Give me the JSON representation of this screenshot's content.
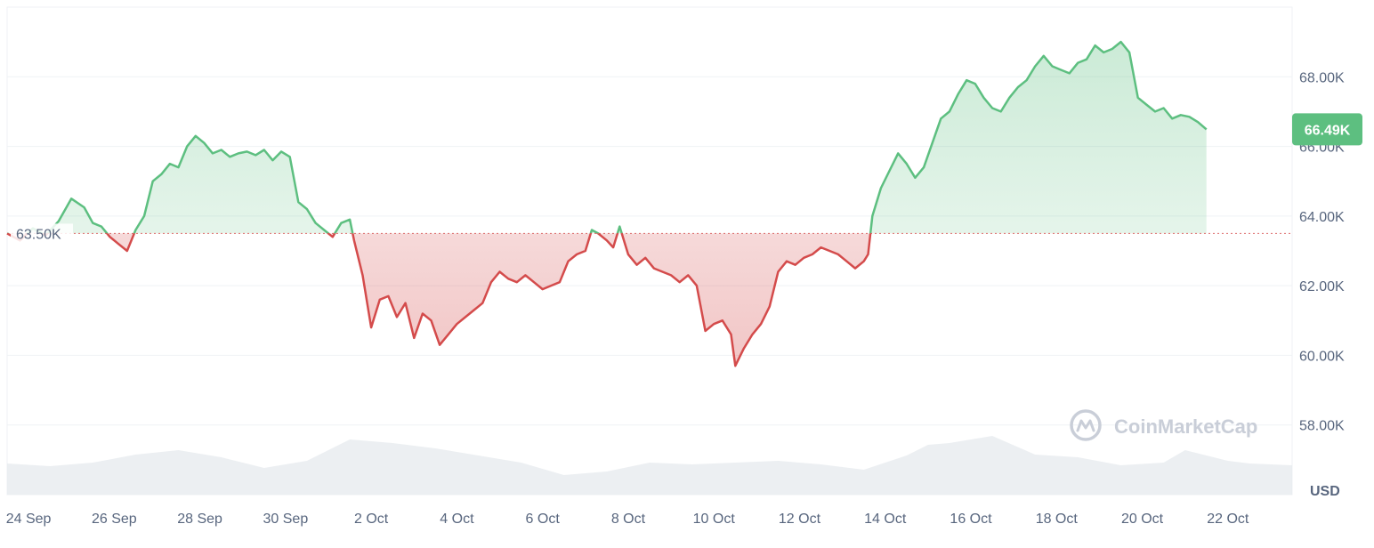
{
  "chart_data": {
    "type": "line",
    "currency_label": "USD",
    "baseline": {
      "value": 63500,
      "label": "63.50K"
    },
    "last_price": {
      "value": 66490,
      "label": "66.49K"
    },
    "y_ticks": [
      {
        "value": 58000,
        "label": "58.00K"
      },
      {
        "value": 60000,
        "label": "60.00K"
      },
      {
        "value": 62000,
        "label": "62.00K"
      },
      {
        "value": 64000,
        "label": "64.00K"
      },
      {
        "value": 66000,
        "label": "66.00K"
      },
      {
        "value": 68000,
        "label": "68.00K"
      }
    ],
    "ylim": [
      56000,
      70000
    ],
    "x_range": [
      0,
      30
    ],
    "x_ticks": [
      {
        "day": 0.5,
        "label": "24 Sep"
      },
      {
        "day": 2.5,
        "label": "26 Sep"
      },
      {
        "day": 4.5,
        "label": "28 Sep"
      },
      {
        "day": 6.5,
        "label": "30 Sep"
      },
      {
        "day": 8.5,
        "label": "2 Oct"
      },
      {
        "day": 10.5,
        "label": "4 Oct"
      },
      {
        "day": 12.5,
        "label": "6 Oct"
      },
      {
        "day": 14.5,
        "label": "8 Oct"
      },
      {
        "day": 16.5,
        "label": "10 Oct"
      },
      {
        "day": 18.5,
        "label": "12 Oct"
      },
      {
        "day": 20.5,
        "label": "14 Oct"
      },
      {
        "day": 22.5,
        "label": "16 Oct"
      },
      {
        "day": 24.5,
        "label": "18 Oct"
      },
      {
        "day": 26.5,
        "label": "20 Oct"
      },
      {
        "day": 28.5,
        "label": "22 Oct"
      }
    ],
    "price_series": {
      "name": "Price",
      "points": [
        [
          0.0,
          63500
        ],
        [
          0.3,
          63300
        ],
        [
          0.6,
          63650
        ],
        [
          0.9,
          63450
        ],
        [
          1.2,
          63850
        ],
        [
          1.5,
          64500
        ],
        [
          1.8,
          64250
        ],
        [
          2.0,
          63800
        ],
        [
          2.2,
          63700
        ],
        [
          2.4,
          63400
        ],
        [
          2.6,
          63200
        ],
        [
          2.8,
          63000
        ],
        [
          3.0,
          63600
        ],
        [
          3.2,
          64000
        ],
        [
          3.4,
          65000
        ],
        [
          3.6,
          65200
        ],
        [
          3.8,
          65500
        ],
        [
          4.0,
          65400
        ],
        [
          4.2,
          66000
        ],
        [
          4.4,
          66300
        ],
        [
          4.6,
          66100
        ],
        [
          4.8,
          65800
        ],
        [
          5.0,
          65900
        ],
        [
          5.2,
          65700
        ],
        [
          5.4,
          65800
        ],
        [
          5.6,
          65850
        ],
        [
          5.8,
          65750
        ],
        [
          6.0,
          65900
        ],
        [
          6.2,
          65600
        ],
        [
          6.4,
          65850
        ],
        [
          6.6,
          65700
        ],
        [
          6.8,
          64400
        ],
        [
          7.0,
          64200
        ],
        [
          7.2,
          63800
        ],
        [
          7.4,
          63600
        ],
        [
          7.6,
          63400
        ],
        [
          7.8,
          63800
        ],
        [
          8.0,
          63900
        ],
        [
          8.1,
          63300
        ],
        [
          8.3,
          62300
        ],
        [
          8.5,
          60800
        ],
        [
          8.7,
          61600
        ],
        [
          8.9,
          61700
        ],
        [
          9.1,
          61100
        ],
        [
          9.3,
          61500
        ],
        [
          9.5,
          60500
        ],
        [
          9.7,
          61200
        ],
        [
          9.9,
          61000
        ],
        [
          10.1,
          60300
        ],
        [
          10.3,
          60600
        ],
        [
          10.5,
          60900
        ],
        [
          10.7,
          61100
        ],
        [
          10.9,
          61300
        ],
        [
          11.1,
          61500
        ],
        [
          11.3,
          62100
        ],
        [
          11.5,
          62400
        ],
        [
          11.7,
          62200
        ],
        [
          11.9,
          62100
        ],
        [
          12.1,
          62300
        ],
        [
          12.3,
          62100
        ],
        [
          12.5,
          61900
        ],
        [
          12.7,
          62000
        ],
        [
          12.9,
          62100
        ],
        [
          13.1,
          62700
        ],
        [
          13.3,
          62900
        ],
        [
          13.5,
          63000
        ],
        [
          13.65,
          63600
        ],
        [
          13.8,
          63500
        ],
        [
          14.0,
          63300
        ],
        [
          14.15,
          63100
        ],
        [
          14.3,
          63700
        ],
        [
          14.5,
          62900
        ],
        [
          14.7,
          62600
        ],
        [
          14.9,
          62800
        ],
        [
          15.1,
          62500
        ],
        [
          15.3,
          62400
        ],
        [
          15.5,
          62300
        ],
        [
          15.7,
          62100
        ],
        [
          15.9,
          62300
        ],
        [
          16.1,
          62000
        ],
        [
          16.3,
          60700
        ],
        [
          16.5,
          60900
        ],
        [
          16.7,
          61000
        ],
        [
          16.9,
          60600
        ],
        [
          17.0,
          59700
        ],
        [
          17.2,
          60200
        ],
        [
          17.4,
          60600
        ],
        [
          17.6,
          60900
        ],
        [
          17.8,
          61400
        ],
        [
          18.0,
          62400
        ],
        [
          18.2,
          62700
        ],
        [
          18.4,
          62600
        ],
        [
          18.6,
          62800
        ],
        [
          18.8,
          62900
        ],
        [
          19.0,
          63100
        ],
        [
          19.2,
          63000
        ],
        [
          19.4,
          62900
        ],
        [
          19.6,
          62700
        ],
        [
          19.8,
          62500
        ],
        [
          20.0,
          62700
        ],
        [
          20.1,
          62900
        ],
        [
          20.2,
          64000
        ],
        [
          20.4,
          64800
        ],
        [
          20.6,
          65300
        ],
        [
          20.8,
          65800
        ],
        [
          21.0,
          65500
        ],
        [
          21.2,
          65100
        ],
        [
          21.4,
          65400
        ],
        [
          21.6,
          66100
        ],
        [
          21.8,
          66800
        ],
        [
          22.0,
          67000
        ],
        [
          22.2,
          67500
        ],
        [
          22.4,
          67900
        ],
        [
          22.6,
          67800
        ],
        [
          22.8,
          67400
        ],
        [
          23.0,
          67100
        ],
        [
          23.2,
          67000
        ],
        [
          23.4,
          67400
        ],
        [
          23.6,
          67700
        ],
        [
          23.8,
          67900
        ],
        [
          24.0,
          68300
        ],
        [
          24.2,
          68600
        ],
        [
          24.4,
          68300
        ],
        [
          24.6,
          68200
        ],
        [
          24.8,
          68100
        ],
        [
          25.0,
          68400
        ],
        [
          25.2,
          68500
        ],
        [
          25.4,
          68900
        ],
        [
          25.6,
          68700
        ],
        [
          25.8,
          68800
        ],
        [
          26.0,
          69000
        ],
        [
          26.2,
          68700
        ],
        [
          26.4,
          67400
        ],
        [
          26.6,
          67200
        ],
        [
          26.8,
          67000
        ],
        [
          27.0,
          67100
        ],
        [
          27.2,
          66800
        ],
        [
          27.4,
          66900
        ],
        [
          27.6,
          66850
        ],
        [
          27.8,
          66700
        ],
        [
          28.0,
          66490
        ]
      ]
    },
    "volume_series": {
      "name": "Volume",
      "points": [
        [
          0,
          0.35
        ],
        [
          1,
          0.32
        ],
        [
          2,
          0.36
        ],
        [
          3,
          0.45
        ],
        [
          4,
          0.5
        ],
        [
          5,
          0.42
        ],
        [
          6,
          0.3
        ],
        [
          7,
          0.38
        ],
        [
          7.5,
          0.5
        ],
        [
          8,
          0.62
        ],
        [
          8.5,
          0.6
        ],
        [
          9,
          0.58
        ],
        [
          10,
          0.52
        ],
        [
          11,
          0.44
        ],
        [
          12,
          0.36
        ],
        [
          13,
          0.22
        ],
        [
          14,
          0.26
        ],
        [
          15,
          0.36
        ],
        [
          16,
          0.34
        ],
        [
          17,
          0.36
        ],
        [
          18,
          0.38
        ],
        [
          19,
          0.34
        ],
        [
          20,
          0.28
        ],
        [
          21,
          0.44
        ],
        [
          21.5,
          0.56
        ],
        [
          22,
          0.58
        ],
        [
          22.5,
          0.62
        ],
        [
          23,
          0.66
        ],
        [
          24,
          0.45
        ],
        [
          25,
          0.42
        ],
        [
          26,
          0.33
        ],
        [
          27,
          0.36
        ],
        [
          27.5,
          0.5
        ],
        [
          28,
          0.44
        ],
        [
          28.5,
          0.38
        ],
        [
          29,
          0.35
        ],
        [
          30,
          0.33
        ]
      ]
    },
    "colors": {
      "up": "#5dbf80",
      "down": "#d44b4b",
      "grid": "#eff2f5",
      "axis_text": "#58667e",
      "badge": "#5dbf80"
    }
  },
  "watermark": {
    "text": "CoinMarketCap",
    "icon": "coinmarketcap-logo-icon"
  }
}
